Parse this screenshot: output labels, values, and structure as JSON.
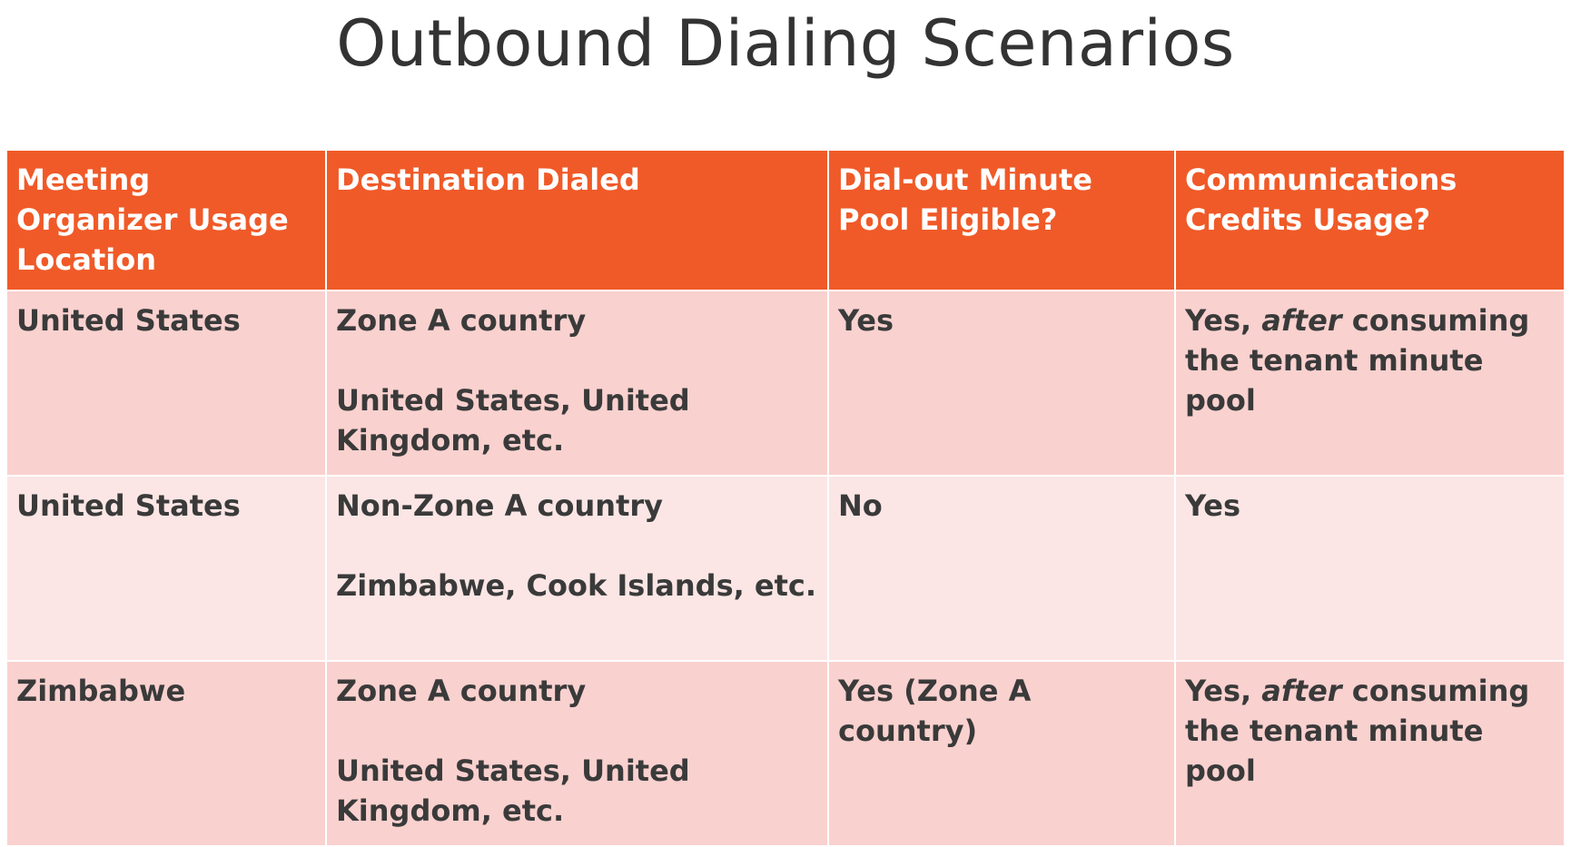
{
  "title": "Outbound Dialing Scenarios",
  "colors": {
    "header_bg": "#f05a28",
    "row_dark": "#f9d1cf",
    "row_light": "#fbe6e5"
  },
  "table": {
    "headers": [
      "Meeting Organizer Usage Location",
      "Destination Dialed",
      "Dial-out Minute Pool Eligible?",
      "Communications Credits Usage?"
    ],
    "rows": [
      {
        "location": "United States",
        "destination": "Zone A country",
        "destination_examples": "United States, United Kingdom, etc.",
        "pool_eligible": "Yes",
        "credits_prefix": "Yes,",
        "credits_emphasis": "after",
        "credits_suffix": "consuming the tenant minute pool"
      },
      {
        "location": "United States",
        "destination": "Non-Zone A country",
        "destination_examples": "Zimbabwe, Cook Islands, etc.",
        "pool_eligible": "No",
        "credits": "Yes"
      },
      {
        "location": "Zimbabwe",
        "destination": "Zone A country",
        "destination_examples": "United States, United Kingdom, etc.",
        "pool_eligible": "Yes (Zone A country)",
        "credits_prefix": "Yes,",
        "credits_emphasis": "after",
        "credits_suffix": "consuming the tenant minute pool"
      }
    ]
  }
}
